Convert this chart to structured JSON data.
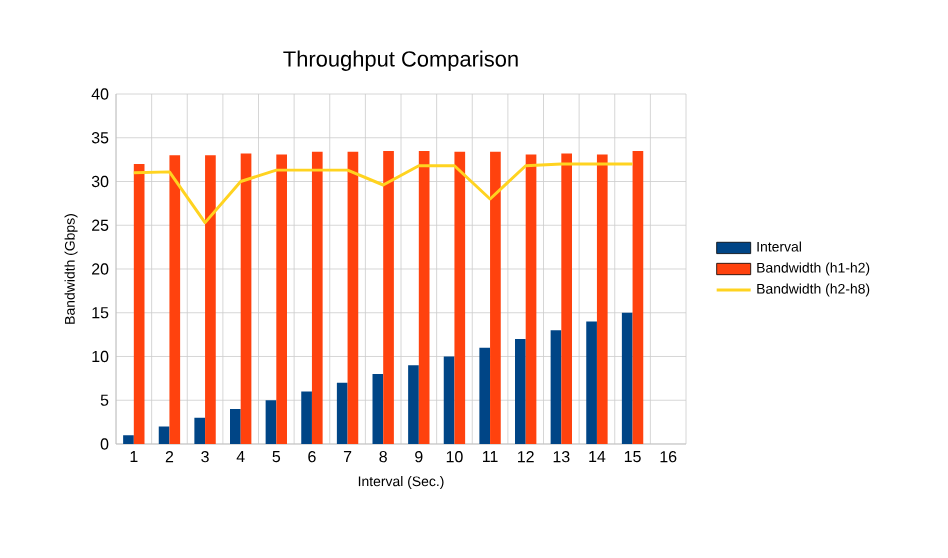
{
  "chart_data": {
    "type": "bar",
    "title": "Throughput Comparison",
    "xlabel": "Interval (Sec.)",
    "ylabel": "Bandwidth (Gbps)",
    "categories": [
      "1",
      "2",
      "3",
      "4",
      "5",
      "6",
      "7",
      "8",
      "9",
      "10",
      "11",
      "12",
      "13",
      "14",
      "15",
      "16"
    ],
    "series": [
      {
        "name": "Interval",
        "color": "#004586",
        "values": [
          1,
          2,
          3,
          4,
          5,
          6,
          7,
          8,
          9,
          10,
          11,
          12,
          13,
          14,
          15,
          null
        ]
      },
      {
        "name": "Bandwidth (h1-h2)",
        "color": "#ff420e",
        "values": [
          32,
          33,
          33,
          33.2,
          33.1,
          33.4,
          33.4,
          33.5,
          33.5,
          33.4,
          33.4,
          33.1,
          33.2,
          33.1,
          33.5,
          null
        ]
      },
      {
        "name": "Bandwidth (h2-h8)",
        "type": "line",
        "color": "#ffd320",
        "values": [
          31,
          31.1,
          25.3,
          30,
          31.3,
          31.3,
          31.3,
          29.6,
          31.8,
          31.8,
          28,
          31.8,
          32,
          32,
          32,
          null
        ]
      }
    ],
    "ylim": [
      0,
      40
    ],
    "yticks": [
      0,
      5,
      10,
      15,
      20,
      25,
      30,
      35,
      40
    ],
    "grid": true,
    "legend": "right"
  }
}
